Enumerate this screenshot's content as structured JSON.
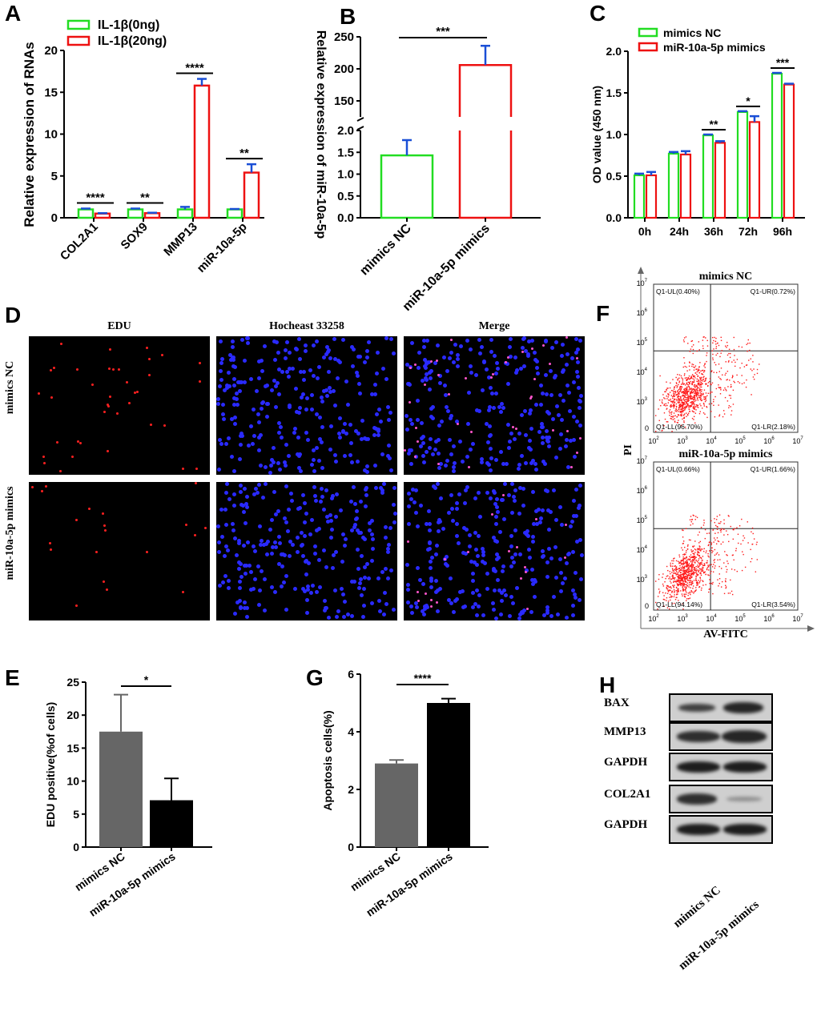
{
  "panels": {
    "A": {
      "letter": "A",
      "chart_index": 0
    },
    "B": {
      "letter": "B",
      "chart_index": 1
    },
    "C": {
      "letter": "C",
      "chart_index": 2
    },
    "D": {
      "letter": "D"
    },
    "E": {
      "letter": "E",
      "chart_index": 3
    },
    "F": {
      "letter": "F"
    },
    "G": {
      "letter": "G",
      "chart_index": 4
    },
    "H": {
      "letter": "H"
    }
  },
  "chart_data": [
    {
      "type": "bar",
      "panel": "A",
      "categories": [
        "COL2A1",
        "SOX9",
        "MMP13",
        "miR-10a-5p"
      ],
      "series": [
        {
          "name": "IL-1β(0ng)",
          "color": "#22dd22",
          "values": [
            1.0,
            1.0,
            1.0,
            1.0
          ],
          "errors": [
            0.1,
            0.1,
            0.3,
            0.05
          ]
        },
        {
          "name": "IL-1β(20ng)",
          "color": "#ee1111",
          "values": [
            0.5,
            0.55,
            15.8,
            5.4
          ],
          "errors": [
            0.05,
            0.05,
            0.8,
            1.0
          ]
        }
      ],
      "significance": [
        "****",
        "**",
        "****",
        "**"
      ],
      "ylabel": "Relative expression of RNAs",
      "ylim": [
        0,
        20
      ],
      "yticks": [
        "0",
        "5",
        "10",
        "15",
        "20"
      ],
      "legend": "top"
    },
    {
      "type": "bar",
      "panel": "B",
      "categories": [
        "mimics NC",
        "miR-10a-5p mimics"
      ],
      "values": [
        1.43,
        206
      ],
      "errors": [
        0.35,
        30
      ],
      "colors": [
        "#22dd22",
        "#ee1111"
      ],
      "significance": "***",
      "ylabel": "Relative expression of miR-10a-5p",
      "axis_break": true,
      "lower_yticks": [
        "0.0",
        "0.5",
        "1.0",
        "1.5",
        "2.0"
      ],
      "upper_yticks": [
        "150",
        "200",
        "250"
      ]
    },
    {
      "type": "bar",
      "panel": "C",
      "categories": [
        "0h",
        "24h",
        "36h",
        "72h",
        "96h"
      ],
      "series": [
        {
          "name": "mimics NC",
          "color": "#22dd22",
          "values": [
            0.51,
            0.77,
            0.99,
            1.27,
            1.73
          ],
          "errors": [
            0.02,
            0.02,
            0.01,
            0.01,
            0.01
          ]
        },
        {
          "name": "miR-10a-5p mimics",
          "color": "#ee1111",
          "values": [
            0.51,
            0.76,
            0.9,
            1.15,
            1.6
          ],
          "errors": [
            0.04,
            0.04,
            0.02,
            0.07,
            0.01
          ]
        }
      ],
      "significance": [
        "",
        "",
        "**",
        "*",
        "***"
      ],
      "ylabel": "OD value (450 nm)",
      "ylim": [
        0,
        2
      ],
      "yticks": [
        "0.0",
        "0.5",
        "1.0",
        "1.5",
        "2.0"
      ],
      "legend": "top"
    },
    {
      "type": "bar",
      "panel": "E",
      "categories": [
        "mimics NC",
        "miR-10a-5p mimics"
      ],
      "values": [
        17.5,
        7.1
      ],
      "errors": [
        5.6,
        3.3
      ],
      "colors": [
        "#666666",
        "#000000"
      ],
      "significance": "*",
      "ylabel": "EDU positive(%of cells)",
      "ylim": [
        0,
        25
      ],
      "yticks": [
        "0",
        "5",
        "10",
        "15",
        "20",
        "25"
      ]
    },
    {
      "type": "bar",
      "panel": "G",
      "categories": [
        "mimics NC",
        "miR-10a-5p mimics"
      ],
      "values": [
        2.9,
        5.0
      ],
      "errors": [
        0.12,
        0.15
      ],
      "colors": [
        "#666666",
        "#000000"
      ],
      "significance": "****",
      "ylabel": "Apoptosis cells(%)",
      "ylim": [
        0,
        6
      ],
      "yticks": [
        "0",
        "2",
        "4",
        "6"
      ]
    }
  ],
  "micro": {
    "columns": [
      "EDU",
      "Hocheast 33258",
      "Merge"
    ],
    "rows": [
      "mimics NC",
      "miR-10a-5p mimics"
    ]
  },
  "flow": {
    "ylabel": "PI",
    "xlabel": "AV-FITC",
    "axis_ticks": {
      "base": [
        "10",
        "10",
        "10",
        "10",
        "10",
        "10"
      ],
      "exp": [
        "2",
        "3",
        "4",
        "5",
        "6",
        "7"
      ],
      "zero": "0"
    },
    "plots": [
      {
        "title": "mimics NC",
        "UL": "Q1-UL(0.40%)",
        "UR": "Q1-UR(0.72%)",
        "LL": "Q1-LL(96.70%)",
        "LR": "Q1-LR(2.18%)"
      },
      {
        "title": "miR-10a-5p mimics",
        "UL": "Q1-UL(0.66%)",
        "UR": "Q1-UR(1.66%)",
        "LL": "Q1-LL(94.14%)",
        "LR": "Q1-LR(3.54%)"
      }
    ]
  },
  "blot": {
    "rows": [
      "BAX",
      "MMP13",
      "GAPDH",
      "COL2A1",
      "GAPDH"
    ],
    "lanes": [
      "mimics NC",
      "miR-10a-5p mimics"
    ]
  }
}
